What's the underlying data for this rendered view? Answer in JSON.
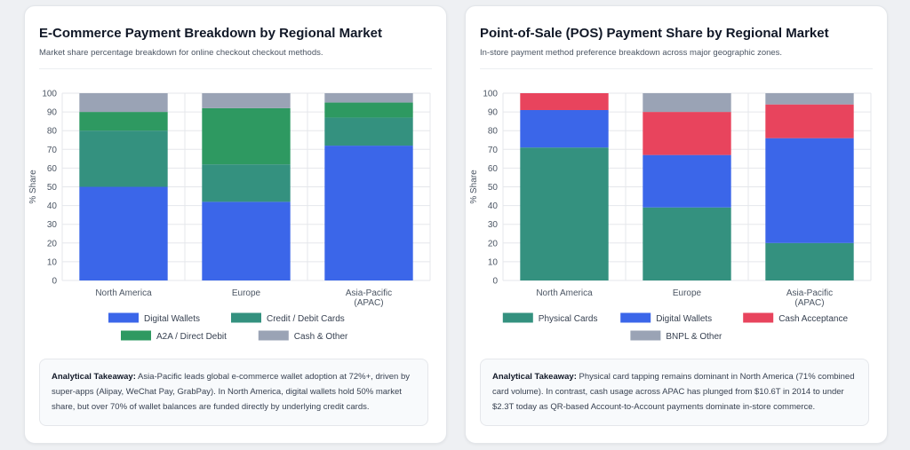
{
  "cards": [
    {
      "title": "E-Commerce Payment Breakdown by Regional Market",
      "subtitle": "Market share percentage breakdown for online checkout checkout methods.",
      "takeaway_label": "Analytical Takeaway:",
      "takeaway_text": "Asia-Pacific leads global e-commerce wallet adoption at 72%+, driven by super-apps (Alipay, WeChat Pay, GrabPay). In North America, digital wallets hold 50% market share, but over 70% of wallet balances are funded directly by underlying credit cards."
    },
    {
      "title": "Point-of-Sale (POS) Payment Share by Regional Market",
      "subtitle": "In-store payment method preference breakdown across major geographic zones.",
      "takeaway_label": "Analytical Takeaway:",
      "takeaway_text": "Physical card tapping remains dominant in North America (71% combined card volume). In contrast, cash usage across APAC has plunged from $10.6T in 2014 to under $2.3T today as QR-based Account-to-Account payments dominate in-store commerce."
    }
  ],
  "chart_data": [
    {
      "type": "bar",
      "stacked": true,
      "categories": [
        [
          "North America"
        ],
        [
          "Europe"
        ],
        [
          "Asia-Pacific",
          "(APAC)"
        ]
      ],
      "series": [
        {
          "name": "Digital Wallets",
          "color": "#3b66e9",
          "values": [
            50,
            42,
            72
          ]
        },
        {
          "name": "Credit / Debit Cards",
          "color": "#34917f",
          "values": [
            30,
            20,
            15
          ]
        },
        {
          "name": "A2A / Direct Debit",
          "color": "#2e9961",
          "values": [
            10,
            30,
            8
          ]
        },
        {
          "name": "Cash & Other",
          "color": "#9aa3b5",
          "values": [
            10,
            8,
            5
          ]
        }
      ],
      "ylabel": "% Share",
      "ylim": [
        0,
        100
      ],
      "yticks": [
        0,
        10,
        20,
        30,
        40,
        50,
        60,
        70,
        80,
        90,
        100
      ],
      "grid": true,
      "legend": "bottom"
    },
    {
      "type": "bar",
      "stacked": true,
      "categories": [
        [
          "North America"
        ],
        [
          "Europe"
        ],
        [
          "Asia-Pacific",
          "(APAC)"
        ]
      ],
      "series": [
        {
          "name": "Physical Cards",
          "color": "#34917f",
          "values": [
            71,
            39,
            20
          ]
        },
        {
          "name": "Digital Wallets",
          "color": "#3b66e9",
          "values": [
            20,
            28,
            56
          ]
        },
        {
          "name": "Cash Acceptance",
          "color": "#e8445d",
          "values": [
            9,
            23,
            18
          ]
        },
        {
          "name": "BNPL & Other",
          "color": "#9aa3b5",
          "values": [
            0,
            10,
            6
          ]
        }
      ],
      "ylabel": "% Share",
      "ylim": [
        0,
        100
      ],
      "yticks": [
        0,
        10,
        20,
        30,
        40,
        50,
        60,
        70,
        80,
        90,
        100
      ],
      "grid": true,
      "legend": "bottom"
    }
  ]
}
